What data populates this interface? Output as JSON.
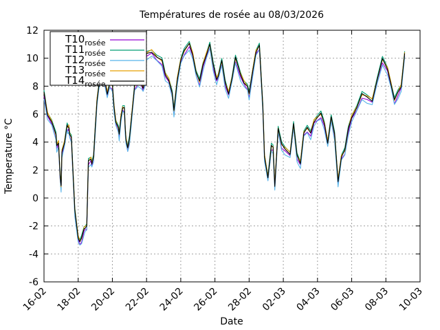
{
  "chart_data": {
    "type": "line",
    "title": "Températures de rosée au 08/03/2026",
    "xlabel": "Date",
    "ylabel": "Temperature °C",
    "x_tick_labels": [
      "16-02",
      "18-02",
      "20-02",
      "22-02",
      "24-02",
      "26-02",
      "28-02",
      "02-03",
      "04-03",
      "06-03",
      "08-03",
      "10-03"
    ],
    "xlim_days": [
      0,
      22
    ],
    "ylim": [
      -6,
      12
    ],
    "y_ticks": [
      -6,
      -4,
      -2,
      0,
      2,
      4,
      6,
      8,
      10,
      12
    ],
    "grid": true,
    "legend_position": "top-left",
    "series": [
      {
        "name": "T10",
        "subscript": "rosée",
        "color": "#9400d3",
        "offset": -0.2
      },
      {
        "name": "T11",
        "subscript": "rosée",
        "color": "#009e73",
        "offset": 0.15
      },
      {
        "name": "T12",
        "subscript": "rosée",
        "color": "#56b4e9",
        "offset": -0.35
      },
      {
        "name": "T13",
        "subscript": "rosée",
        "color": "#e69f00",
        "offset": 0.05
      },
      {
        "name": "T14",
        "subscript": "rosée",
        "color": "#000000",
        "offset": 0.0
      }
    ],
    "x_days": [
      0,
      0.2,
      0.45,
      0.7,
      0.75,
      0.85,
      0.95,
      1.0,
      1.05,
      1.2,
      1.35,
      1.4,
      1.45,
      1.5,
      1.6,
      1.8,
      2.0,
      2.1,
      2.2,
      2.35,
      2.4,
      2.5,
      2.6,
      2.75,
      2.8,
      2.9,
      3.0,
      3.1,
      3.2,
      3.3,
      3.5,
      3.7,
      3.85,
      4.0,
      4.1,
      4.2,
      4.35,
      4.4,
      4.5,
      4.6,
      4.7,
      4.75,
      4.8,
      4.9,
      5.0,
      5.1,
      5.2,
      5.3,
      5.5,
      5.7,
      5.8,
      5.9,
      6.0,
      6.3,
      6.6,
      6.9,
      7.1,
      7.3,
      7.5,
      7.6,
      7.8,
      8.0,
      8.2,
      8.5,
      8.7,
      8.9,
      9.1,
      9.3,
      9.5,
      9.7,
      9.9,
      10.1,
      10.2,
      10.4,
      10.6,
      10.8,
      11.0,
      11.2,
      11.5,
      11.7,
      11.9,
      12.0,
      12.2,
      12.4,
      12.6,
      12.8,
      12.9,
      13.1,
      13.3,
      13.4,
      13.5,
      13.7,
      13.9,
      14.1,
      14.4,
      14.6,
      14.8,
      15.0,
      15.2,
      15.4,
      15.6,
      15.8,
      16.0,
      16.2,
      16.4,
      16.6,
      16.8,
      17.0,
      17.2,
      17.4,
      17.6,
      17.8,
      18.0,
      18.3,
      18.6,
      18.9,
      19.2,
      19.5,
      19.8,
      20.1,
      20.3,
      20.5,
      20.7,
      20.9,
      21.1
    ],
    "values": [
      7.5,
      6.0,
      5.5,
      4.5,
      3.7,
      4.0,
      1.5,
      0.8,
      3.3,
      4.0,
      5.2,
      5.0,
      5.1,
      4.6,
      4.3,
      -0.9,
      -2.8,
      -3.1,
      -2.9,
      -2.2,
      -2.1,
      -2.0,
      2.6,
      2.8,
      2.5,
      2.9,
      5.0,
      7.0,
      8.0,
      8.7,
      8.8,
      7.5,
      8.2,
      8.0,
      6.5,
      5.5,
      5.0,
      4.5,
      5.8,
      6.5,
      6.4,
      5.0,
      4.2,
      3.6,
      4.2,
      5.5,
      6.8,
      8.0,
      8.4,
      8.2,
      7.9,
      8.3,
      10.3,
      10.5,
      10.1,
      9.8,
      8.8,
      8.5,
      7.5,
      6.2,
      8.5,
      9.9,
      10.5,
      11.0,
      10.3,
      9.0,
      8.3,
      9.5,
      10.3,
      11.0,
      9.5,
      8.5,
      8.8,
      9.8,
      8.2,
      7.5,
      8.6,
      10.0,
      8.8,
      8.3,
      8.0,
      7.4,
      9.0,
      10.5,
      10.9,
      6.5,
      3.0,
      1.5,
      3.7,
      3.6,
      0.9,
      5.0,
      3.8,
      3.5,
      3.2,
      5.3,
      3.0,
      2.5,
      4.7,
      5.0,
      4.6,
      5.5,
      5.8,
      6.0,
      5.3,
      4.0,
      5.8,
      4.5,
      1.2,
      3.0,
      3.4,
      4.9,
      5.8,
      6.5,
      7.4,
      7.2,
      7.0,
      8.5,
      9.9,
      9.2,
      8.2,
      7.0,
      7.5,
      8.0,
      10.4
    ]
  }
}
